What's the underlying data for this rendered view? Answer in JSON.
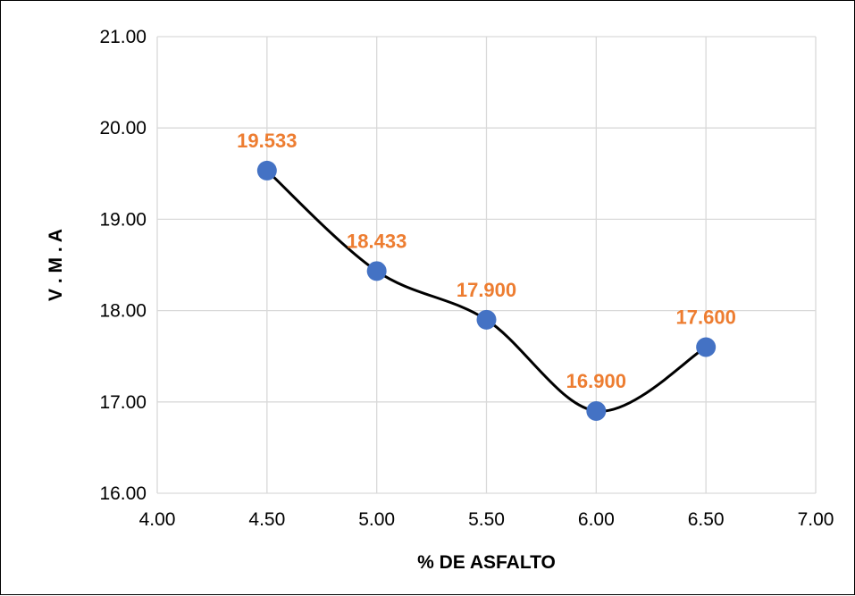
{
  "chart_data": {
    "type": "line",
    "title": "",
    "xlabel": "% DE ASFALTO",
    "ylabel": "V . M . A",
    "xlim": [
      4.0,
      7.0
    ],
    "ylim": [
      16.0,
      21.0
    ],
    "x_ticks": [
      "4.00",
      "4.50",
      "5.00",
      "5.50",
      "6.00",
      "6.50",
      "7.00"
    ],
    "y_ticks": [
      "16.00",
      "17.00",
      "18.00",
      "19.00",
      "20.00",
      "21.00"
    ],
    "grid": true,
    "smooth": true,
    "series": [
      {
        "x": [
          4.5,
          5.0,
          5.5,
          6.0,
          6.5
        ],
        "y": [
          19.533,
          18.433,
          17.9,
          16.9,
          17.6
        ],
        "labels": [
          "19.533",
          "18.433",
          "17.900",
          "16.900",
          "17.600"
        ]
      }
    ],
    "colors": {
      "line": "#000000",
      "marker": "#4472C4",
      "data_label": "#ED7D31",
      "grid": "#D9D9D9"
    }
  }
}
